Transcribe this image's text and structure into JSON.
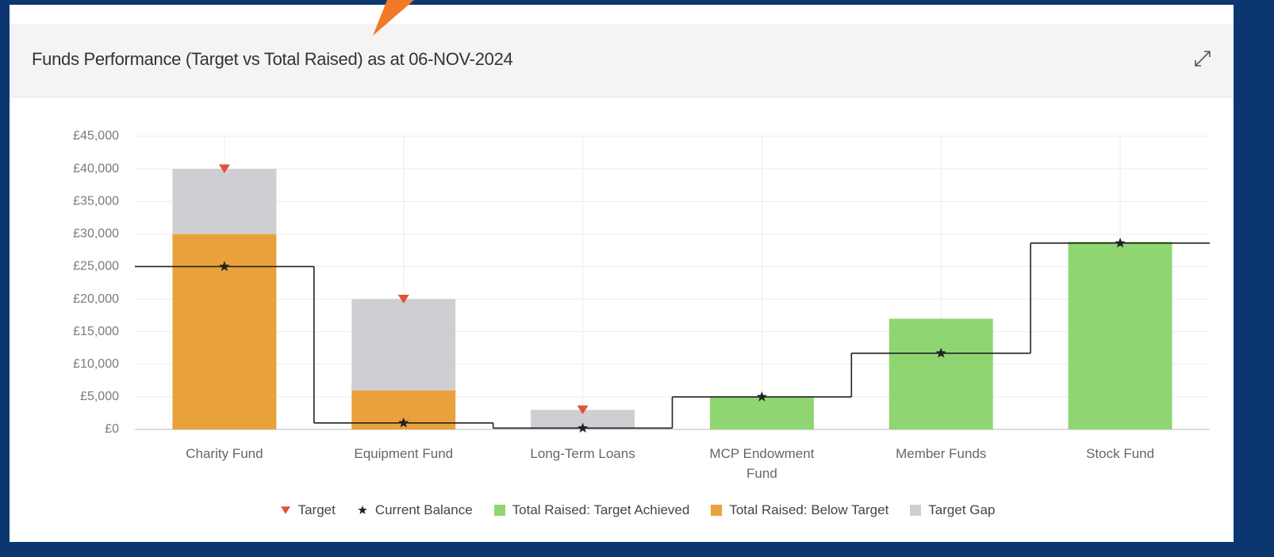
{
  "chart_data": {
    "type": "bar",
    "title": "Funds Performance (Target vs Total Raised) as at 06-NOV-2024",
    "categories": [
      "Charity Fund",
      "Equipment Fund",
      "Long-Term Loans",
      "MCP Endowment Fund",
      "Member Funds",
      "Stock Fund"
    ],
    "series": [
      {
        "name": "Target",
        "type": "scatter",
        "marker": "triangle-down",
        "color": "#e0533a",
        "values": [
          40000,
          20000,
          3000,
          null,
          null,
          null
        ]
      },
      {
        "name": "Current Balance",
        "type": "step",
        "marker": "star",
        "color": "#222222",
        "values": [
          25000,
          1000,
          200,
          5000,
          11700,
          28600
        ]
      },
      {
        "name": "Total Raised: Target Achieved",
        "color": "#8fd672",
        "values": [
          null,
          null,
          null,
          5000,
          17000,
          28800
        ]
      },
      {
        "name": "Total Raised: Below Target",
        "color": "#e9a23b",
        "values": [
          30000,
          6000,
          0,
          null,
          null,
          null
        ]
      },
      {
        "name": "Target Gap",
        "color": "#cfcfd3",
        "values": [
          10000,
          14000,
          3000,
          null,
          null,
          null
        ]
      }
    ],
    "stacked": true,
    "ylim": [
      0,
      45000
    ],
    "yticks": [
      {
        "value": 0,
        "label": "£0"
      },
      {
        "value": 5000,
        "label": "£5,000"
      },
      {
        "value": 10000,
        "label": "£10,000"
      },
      {
        "value": 15000,
        "label": "£15,000"
      },
      {
        "value": 20000,
        "label": "£20,000"
      },
      {
        "value": 25000,
        "label": "£25,000"
      },
      {
        "value": 30000,
        "label": "£30,000"
      },
      {
        "value": 35000,
        "label": "£35,000"
      },
      {
        "value": 40000,
        "label": "£40,000"
      },
      {
        "value": 45000,
        "label": "£45,000"
      }
    ],
    "grid": true,
    "legend": "bottom"
  }
}
